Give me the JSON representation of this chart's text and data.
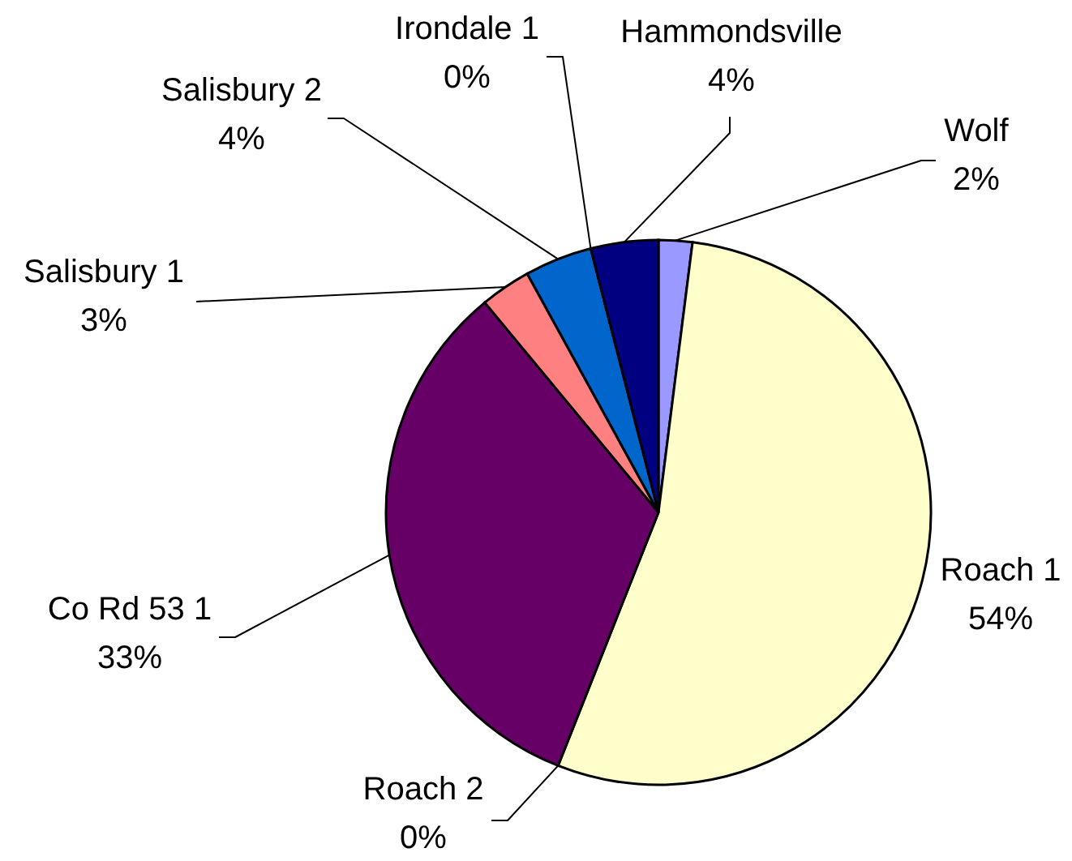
{
  "chart_data": {
    "type": "pie",
    "categories": [
      "Wolf",
      "Roach 1",
      "Roach 2",
      "Co Rd 53 1",
      "Salisbury 1",
      "Salisbury 2",
      "Irondale 1",
      "Hammondsville"
    ],
    "values": [
      2,
      54,
      0,
      33,
      3,
      4,
      0,
      4
    ],
    "colors": [
      "#9999ff",
      "#ffffcc",
      "#ccffff",
      "#660066",
      "#ff8080",
      "#0066cc",
      "#ccccff",
      "#000080"
    ],
    "value_labels": [
      "2%",
      "54%",
      "0%",
      "33%",
      "3%",
      "4%",
      "0%",
      "4%"
    ]
  }
}
